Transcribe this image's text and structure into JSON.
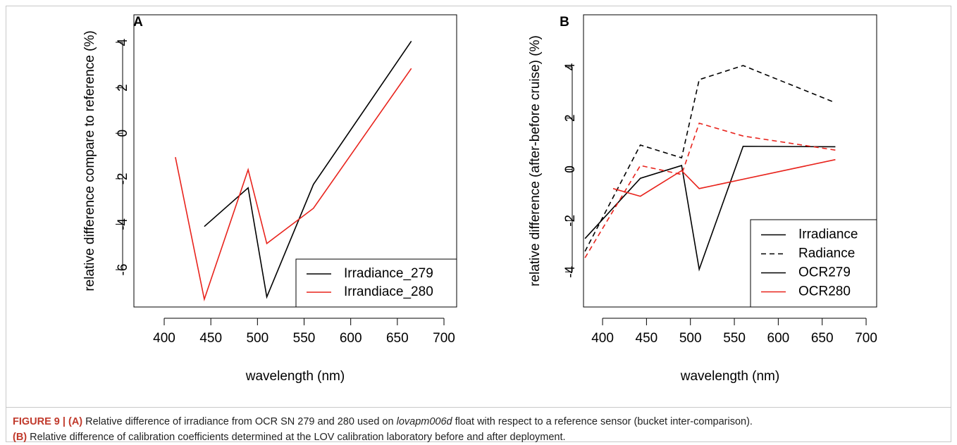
{
  "chart_data": [
    {
      "type": "line",
      "panel": "A",
      "xlabel": "wavelength (nm)",
      "ylabel": "relative difference compare to reference (%)",
      "xlim": [
        367.5,
        713.6
      ],
      "ylim": [
        -7.64,
        5.21
      ],
      "xticks": [
        400,
        450,
        500,
        550,
        600,
        650,
        700
      ],
      "yticks": [
        -6,
        -4,
        -2,
        0,
        2,
        4
      ],
      "legend_position": "bottom-right",
      "series": [
        {
          "name": "Irradiance_279",
          "color": "#000000",
          "dash": false,
          "x": [
            443,
            490,
            510,
            560,
            665
          ],
          "values": [
            -4.1,
            -2.4,
            -7.2,
            -2.25,
            4.05
          ]
        },
        {
          "name": "Irrandiace_280",
          "color": "#e8231c",
          "dash": false,
          "x": [
            412,
            443,
            490,
            510,
            560,
            665
          ],
          "values": [
            -1.05,
            -7.3,
            -1.6,
            -4.85,
            -3.3,
            2.85
          ]
        }
      ]
    },
    {
      "type": "line",
      "panel": "B",
      "xlabel": "wavelength (nm)",
      "ylabel": "relative difference (after-before cruise) (%)",
      "xlim": [
        378.3,
        712
      ],
      "ylim": [
        -5.37,
        6.03
      ],
      "xticks": [
        400,
        450,
        500,
        550,
        600,
        650,
        700
      ],
      "yticks": [
        -4,
        -2,
        0,
        2,
        4
      ],
      "legend_position": "bottom-right",
      "legend": [
        {
          "label": "Irradiance",
          "color": "#000000",
          "dash": false
        },
        {
          "label": "Radiance",
          "color": "#000000",
          "dash": true
        },
        {
          "label": "OCR279",
          "color": "#000000",
          "dash": false
        },
        {
          "label": "OCR280",
          "color": "#e8231c",
          "dash": false
        }
      ],
      "series": [
        {
          "color": "#000000",
          "dash": false,
          "x": [
            380,
            443,
            490,
            510,
            560,
            665
          ],
          "values": [
            -2.7,
            -0.35,
            0.15,
            -3.9,
            0.9,
            0.88
          ]
        },
        {
          "color": "#000000",
          "dash": true,
          "x": [
            380,
            443,
            490,
            510,
            560,
            665
          ],
          "values": [
            -3.2,
            0.95,
            0.45,
            3.5,
            4.05,
            2.6
          ]
        },
        {
          "color": "#e8231c",
          "dash": false,
          "x": [
            412,
            443,
            490,
            510,
            665
          ],
          "values": [
            -0.75,
            -1.05,
            -0.05,
            -0.75,
            0.38
          ]
        },
        {
          "color": "#e8231c",
          "dash": true,
          "x": [
            380,
            443,
            490,
            510,
            560,
            665
          ],
          "values": [
            -3.45,
            0.15,
            -0.2,
            1.8,
            1.3,
            0.75
          ]
        }
      ]
    }
  ],
  "caption": {
    "figure": "FIGURE 9 |",
    "a_tag": "(A)",
    "a_text_1": "Relative difference of irradiance from OCR SN 279 and 280 used on",
    "a_italic": "lovapm006d",
    "a_text_2": "float with respect to a reference sensor (bucket inter-comparison).",
    "b_tag": "(B)",
    "b_text": "Relative difference of calibration coefficients determined at the LOV calibration laboratory before and after deployment."
  }
}
